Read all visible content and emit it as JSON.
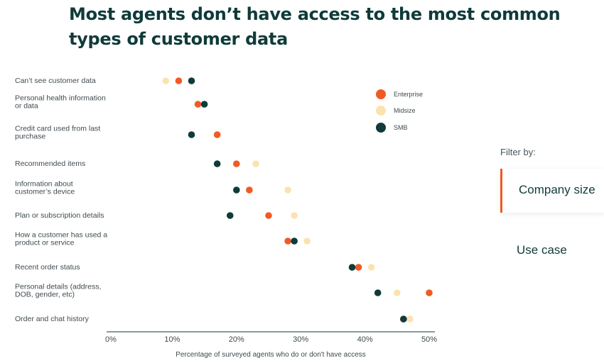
{
  "page": {
    "title": "Most agents don’t have access to the most common types of customer data"
  },
  "filter": {
    "title": "Filter by:",
    "options": [
      {
        "label": "Company size",
        "active": true
      },
      {
        "label": "Use case",
        "active": false
      }
    ]
  },
  "colors": {
    "Enterprise": "#f15a24",
    "Midsize": "#fbe3b0",
    "SMB": "#0f3b3a"
  },
  "chart_data": {
    "type": "scatter",
    "title": "Most agents don’t have access to the most common types of customer data",
    "xlabel": "Percentage of surveyed agents who do or don't have access",
    "ylabel": "",
    "xlim": [
      0,
      50
    ],
    "x_ticks": [
      "0%",
      "10%",
      "20%",
      "30%",
      "40%",
      "50%"
    ],
    "legend": {
      "placement": "top-right",
      "entries": [
        "Enterprise",
        "Midsize",
        "SMB"
      ]
    },
    "grid": false,
    "categories": [
      [
        "Can’t see customer data"
      ],
      [
        "Personal health information",
        "or data"
      ],
      [
        "Credit card used from last",
        "purchase"
      ],
      [
        "Recommended items"
      ],
      [
        "Information about",
        "customer’s device"
      ],
      [
        "Plan or subscription details"
      ],
      [
        "How a customer has used a",
        "product or service"
      ],
      [
        "Recent order status"
      ],
      [
        "Personal details (address,",
        "DOB, gender, etc)"
      ],
      [
        "Order and chat history"
      ]
    ],
    "series": [
      {
        "name": "Enterprise",
        "values": [
          11,
          14,
          17,
          20,
          22,
          25,
          28,
          39,
          50,
          46
        ]
      },
      {
        "name": "Midsize",
        "values": [
          9,
          14,
          17,
          23,
          28,
          29,
          31,
          41,
          45,
          47
        ]
      },
      {
        "name": "SMB",
        "values": [
          13,
          15,
          13,
          17,
          20,
          19,
          29,
          38,
          42,
          46
        ]
      }
    ]
  }
}
